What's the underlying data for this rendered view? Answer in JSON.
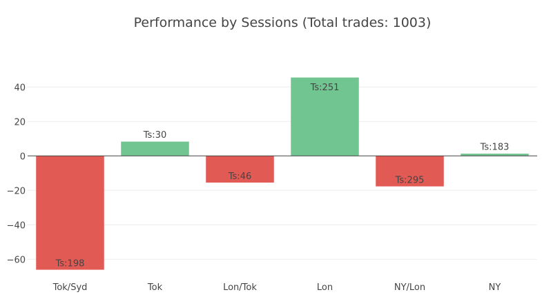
{
  "chart_data": {
    "type": "bar",
    "title": "Performance by Sessions (Total trades: 1003)",
    "xlabel": "",
    "ylabel": "",
    "categories": [
      "Tok/Syd",
      "Tok",
      "Lon/Tok",
      "Lon",
      "NY/Lon",
      "NY"
    ],
    "values": [
      -66,
      8.2,
      -15.4,
      45.4,
      -17.6,
      1.2
    ],
    "bar_labels": [
      "Ts:198",
      "Ts:30",
      "Ts:46",
      "Ts:251",
      "Ts:295",
      "Ts:183"
    ],
    "ylim": [
      -69.5,
      47.9
    ],
    "yticks": [
      -60,
      -40,
      -20,
      0,
      20,
      40
    ],
    "ytick_labels": [
      "−60",
      "−40",
      "−20",
      "0",
      "20",
      "40"
    ],
    "grid": true,
    "colors": {
      "positive": "#6cc48d",
      "negative": "#e2554f"
    }
  }
}
